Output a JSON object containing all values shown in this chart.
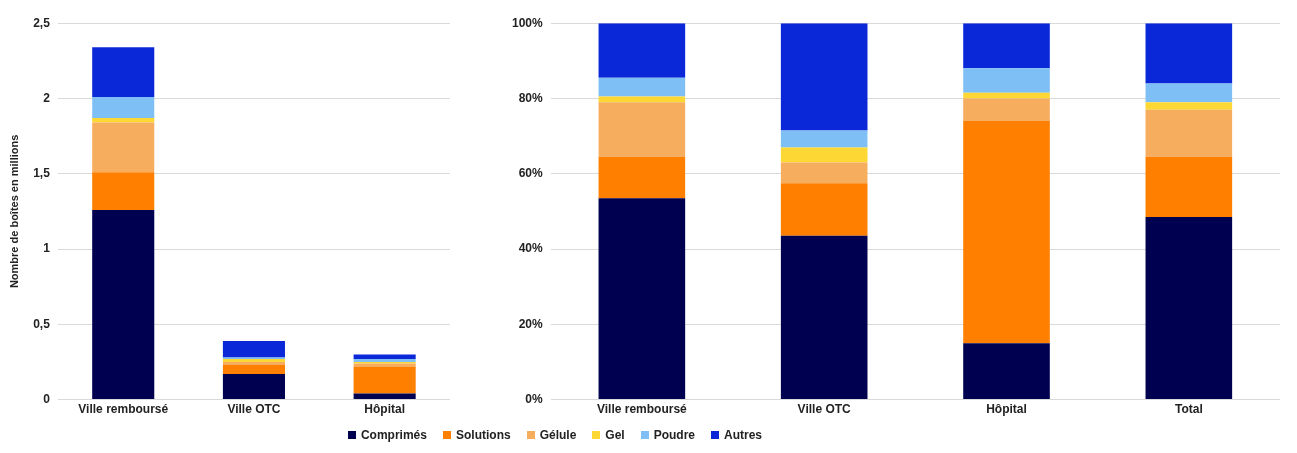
{
  "chart_data": [
    {
      "type": "bar",
      "stacked": true,
      "ylabel": "Nombre de boîtes en millions",
      "categories": [
        "Ville remboursé",
        "Ville OTC",
        "Hôpital"
      ],
      "series": [
        {
          "name": "Comprimés",
          "color": "#000050",
          "values": [
            1.26,
            0.17,
            0.04
          ]
        },
        {
          "name": "Solutions",
          "color": "#ff7f00",
          "values": [
            0.25,
            0.06,
            0.18
          ]
        },
        {
          "name": "Gélule",
          "color": "#f6ad5e",
          "values": [
            0.33,
            0.02,
            0.02
          ]
        },
        {
          "name": "Gel",
          "color": "#fdd835",
          "values": [
            0.03,
            0.02,
            0.01
          ]
        },
        {
          "name": "Poudre",
          "color": "#7ec0f5",
          "values": [
            0.14,
            0.01,
            0.02
          ]
        },
        {
          "name": "Autres",
          "color": "#0a28d8",
          "values": [
            0.33,
            0.11,
            0.03
          ]
        }
      ],
      "ylim": [
        0,
        2.5
      ],
      "yticks": [
        0,
        {
          "value": 0.5,
          "label": "0,5"
        },
        1,
        {
          "value": 1.5,
          "label": "1,5"
        },
        2,
        {
          "value": 2.5,
          "label": "2,5"
        }
      ],
      "grid": "y",
      "legend": "bottom"
    },
    {
      "type": "bar",
      "stacked": true,
      "categories": [
        "Ville remboursé",
        "Ville OTC",
        "Hôpital",
        "Total"
      ],
      "series": [
        {
          "color": "#000050",
          "values": [
            53.5,
            43.5,
            15,
            48.5
          ]
        },
        {
          "color": "#ff7f00",
          "values": [
            11,
            14,
            59,
            16
          ]
        },
        {
          "color": "#f6ad5e",
          "values": [
            14.5,
            5.5,
            6,
            12.5
          ]
        },
        {
          "color": "#fdd835",
          "values": [
            1.5,
            4,
            1.5,
            2
          ]
        },
        {
          "color": "#7ec0f5",
          "values": [
            5,
            4.5,
            6.5,
            5
          ]
        },
        {
          "color": "#0a28d8",
          "values": [
            14.5,
            28.5,
            12,
            16
          ]
        }
      ],
      "ylim": [
        0,
        100
      ],
      "yticks": [
        {
          "value": 0,
          "label": "0%"
        },
        {
          "value": 20,
          "label": "20%"
        },
        {
          "value": 40,
          "label": "40%"
        },
        {
          "value": 60,
          "label": "60%"
        },
        {
          "value": 80,
          "label": "80%"
        },
        {
          "value": 100,
          "label": "100%"
        }
      ],
      "grid": "y"
    }
  ]
}
